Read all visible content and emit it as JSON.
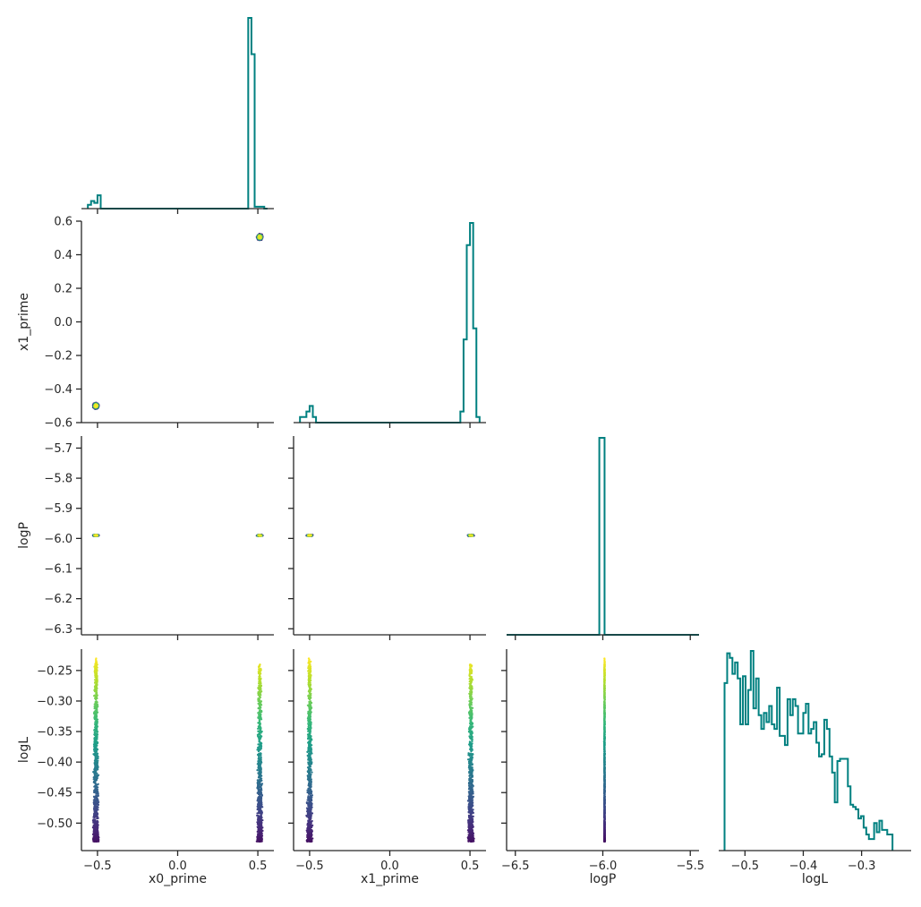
{
  "chart_data": {
    "type": "scatter",
    "kind": "corner-plot",
    "variables": [
      "x0_prime",
      "x1_prime",
      "logP",
      "logL"
    ],
    "colors": {
      "hist": "#008080",
      "colormap": "viridis"
    },
    "ranges": {
      "x0_prime": [
        -0.6,
        0.6
      ],
      "x1_prime": [
        -0.6,
        0.6
      ],
      "logP": [
        -6.55,
        -5.45
      ],
      "logL": [
        -0.545,
        -0.215
      ]
    },
    "logP_yrange": [
      -6.32,
      -5.66
    ],
    "ticks": {
      "x0_prime": [
        -0.5,
        0.0,
        0.5
      ],
      "x1_prime_x": [
        -0.5,
        0.0,
        0.5
      ],
      "x1_prime_y": [
        -0.6,
        -0.4,
        -0.2,
        0.0,
        0.2,
        0.4,
        0.6
      ],
      "logP_x": [
        -6.5,
        -6.0,
        -5.5
      ],
      "logP_y": [
        -6.3,
        -6.2,
        -6.1,
        -6.0,
        -5.9,
        -5.8,
        -5.7
      ],
      "logL_x": [
        -0.5,
        -0.4,
        -0.3
      ],
      "logL_y": [
        -0.5,
        -0.45,
        -0.4,
        -0.35,
        -0.3,
        -0.25
      ]
    },
    "tick_labels": {
      "x0_prime": [
        "−0.5",
        "0.0",
        "0.5"
      ],
      "x1_prime_x": [
        "−0.5",
        "0.0",
        "0.5"
      ],
      "x1_prime_y": [
        "−0.6",
        "−0.4",
        "−0.2",
        "0.0",
        "0.2",
        "0.4",
        "0.6"
      ],
      "logP_x": [
        "−6.5",
        "−6.0",
        "−5.5"
      ],
      "logP_y": [
        "−6.3",
        "−6.2",
        "−6.1",
        "−6.0",
        "−5.9",
        "−5.8",
        "−5.7"
      ],
      "logL_x": [
        "−0.5",
        "−0.4",
        "−0.3"
      ],
      "logL_y": [
        "−0.50",
        "−0.45",
        "−0.40",
        "−0.35",
        "−0.30",
        "−0.25"
      ]
    },
    "axis_labels": {
      "x0_prime": "x0_prime",
      "x1_prime": "x1_prime",
      "logP": "logP",
      "logL": "logL"
    },
    "histograms": {
      "x0_prime": {
        "edges": [
          -0.56,
          -0.54,
          -0.52,
          -0.5,
          -0.48,
          -0.46,
          -0.44,
          0.44,
          0.46,
          0.48,
          0.5,
          0.52,
          0.54,
          0.56
        ],
        "counts": [
          2,
          4,
          3,
          7,
          0,
          0,
          0,
          100,
          81,
          1,
          1,
          1,
          0
        ]
      },
      "x1_prime": {
        "edges": [
          -0.56,
          -0.54,
          -0.52,
          -0.5,
          -0.48,
          -0.46,
          -0.44,
          0.44,
          0.46,
          0.48,
          0.5,
          0.52,
          0.54,
          0.56
        ],
        "counts": [
          1,
          1,
          2,
          3,
          1,
          0,
          0,
          2,
          15,
          32,
          36,
          17,
          1
        ]
      },
      "logP": {
        "edges": [
          -6.55,
          -6.02,
          -5.99,
          -5.45
        ],
        "counts": [
          0,
          100,
          0
        ]
      },
      "logL": {
        "edges": [
          -0.535,
          -0.5305,
          -0.526,
          -0.5215,
          -0.517,
          -0.5125,
          -0.508,
          -0.5035,
          -0.499,
          -0.4945,
          -0.49,
          -0.4855,
          -0.481,
          -0.4765,
          -0.472,
          -0.4675,
          -0.463,
          -0.4585,
          -0.454,
          -0.4495,
          -0.445,
          -0.4405,
          -0.436,
          -0.4315,
          -0.427,
          -0.4225,
          -0.418,
          -0.4135,
          -0.409,
          -0.4045,
          -0.4,
          -0.3955,
          -0.391,
          -0.3865,
          -0.382,
          -0.3775,
          -0.373,
          -0.3685,
          -0.364,
          -0.3595,
          -0.355,
          -0.3505,
          -0.346,
          -0.3415,
          -0.337,
          -0.3325,
          -0.328,
          -0.3235,
          -0.319,
          -0.3145,
          -0.31,
          -0.3055,
          -0.301,
          -0.2965,
          -0.292,
          -0.2875,
          -0.283,
          -0.2785,
          -0.274,
          -0.2695,
          -0.265,
          -0.2605,
          -0.256,
          -0.2515,
          -0.247
        ],
        "counts": [
          73,
          86,
          84,
          77,
          82,
          75,
          55,
          76,
          55,
          70,
          87,
          62,
          75,
          59,
          53,
          60,
          56,
          63,
          55,
          53,
          71,
          50,
          50,
          46,
          66,
          59,
          66,
          63,
          51,
          51,
          60,
          64,
          51,
          53,
          56,
          47,
          41,
          42,
          57,
          53,
          41,
          34,
          21,
          39,
          40,
          40,
          40,
          28,
          20,
          19,
          18,
          14,
          15,
          10,
          7,
          5,
          5,
          12,
          8,
          13,
          9,
          9,
          7,
          7
        ]
      }
    },
    "scatter": {
      "clusters": [
        {
          "x0_prime": -0.5,
          "x1_prime": -0.5,
          "logP": -5.99,
          "logL_range": [
            -0.53,
            -0.23
          ]
        },
        {
          "x0_prime": 0.5,
          "x1_prime": 0.5,
          "logP": -5.99,
          "logL_range": [
            -0.53,
            -0.24
          ]
        }
      ],
      "color_by": "logL"
    }
  }
}
